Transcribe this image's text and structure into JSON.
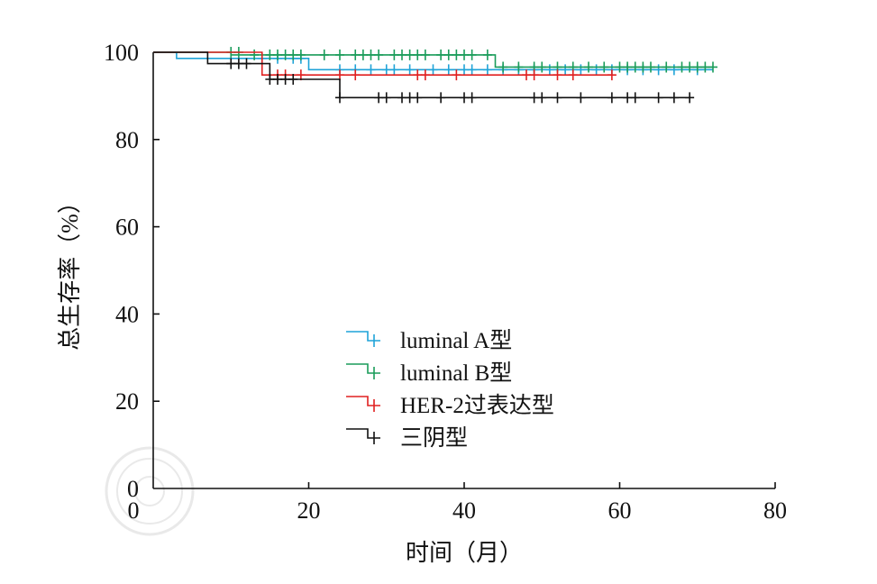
{
  "chart_data": {
    "type": "line",
    "subtype": "kaplan-meier",
    "xlabel": "时间（月）",
    "ylabel": "总生存率（%）",
    "xlim": [
      0,
      80
    ],
    "ylim": [
      0,
      100
    ],
    "xticks": [
      "0",
      "20",
      "40",
      "60",
      "80"
    ],
    "yticks": [
      "0",
      "20",
      "40",
      "60",
      "80",
      "100"
    ],
    "grid": false,
    "legend_position": "lower-center",
    "series": [
      {
        "name": "luminal A型",
        "color": "#1fa3d8",
        "steps": [
          [
            0,
            100
          ],
          [
            3,
            98.6
          ],
          [
            20,
            96.0
          ],
          [
            72,
            96.0
          ]
        ],
        "censors": [
          [
            14,
            98.6
          ],
          [
            16,
            98.6
          ],
          [
            18,
            98.6
          ],
          [
            19,
            98.6
          ],
          [
            24,
            96
          ],
          [
            26,
            96
          ],
          [
            28,
            96
          ],
          [
            30,
            96
          ],
          [
            31,
            96
          ],
          [
            33,
            96
          ],
          [
            36,
            96
          ],
          [
            38,
            96
          ],
          [
            40,
            96
          ],
          [
            41,
            96
          ],
          [
            43,
            96
          ],
          [
            45,
            96
          ],
          [
            47,
            96
          ],
          [
            49,
            96
          ],
          [
            51,
            96
          ],
          [
            53,
            96
          ],
          [
            55,
            96
          ],
          [
            57,
            96
          ],
          [
            59,
            96
          ],
          [
            61,
            96
          ],
          [
            63,
            96
          ],
          [
            65,
            96
          ],
          [
            67,
            96
          ],
          [
            70,
            96
          ]
        ]
      },
      {
        "name": "luminal B型",
        "color": "#1a9c5a",
        "steps": [
          [
            0,
            100
          ],
          [
            10,
            99.4
          ],
          [
            44,
            96.6
          ],
          [
            72,
            96.6
          ]
        ],
        "censors": [
          [
            10,
            100
          ],
          [
            11,
            100
          ],
          [
            13,
            99.4
          ],
          [
            15,
            99.4
          ],
          [
            16,
            99.4
          ],
          [
            17,
            99.4
          ],
          [
            18,
            99.4
          ],
          [
            19,
            99.4
          ],
          [
            22,
            99.4
          ],
          [
            24,
            99.4
          ],
          [
            26,
            99.4
          ],
          [
            27,
            99.4
          ],
          [
            28,
            99.4
          ],
          [
            29,
            99.4
          ],
          [
            31,
            99.4
          ],
          [
            32,
            99.4
          ],
          [
            33,
            99.4
          ],
          [
            34,
            99.4
          ],
          [
            35,
            99.4
          ],
          [
            37,
            99.4
          ],
          [
            38,
            99.4
          ],
          [
            39,
            99.4
          ],
          [
            40,
            99.4
          ],
          [
            41,
            99.4
          ],
          [
            43,
            99.4
          ],
          [
            45,
            96.6
          ],
          [
            47,
            96.6
          ],
          [
            49,
            96.6
          ],
          [
            50,
            96.6
          ],
          [
            52,
            96.6
          ],
          [
            54,
            96.6
          ],
          [
            56,
            96.6
          ],
          [
            58,
            96.6
          ],
          [
            60,
            96.6
          ],
          [
            61,
            96.6
          ],
          [
            62,
            96.6
          ],
          [
            63,
            96.6
          ],
          [
            64,
            96.6
          ],
          [
            66,
            96.6
          ],
          [
            68,
            96.6
          ],
          [
            69,
            96.6
          ],
          [
            70,
            96.6
          ],
          [
            71,
            96.6
          ],
          [
            72,
            96.6
          ]
        ]
      },
      {
        "name": "HER-2过表达型",
        "color": "#e02020",
        "steps": [
          [
            0,
            100
          ],
          [
            14,
            100
          ],
          [
            14,
            94.8
          ],
          [
            59,
            94.8
          ]
        ],
        "censors": [
          [
            16,
            94.8
          ],
          [
            17,
            94.8
          ],
          [
            19,
            94.8
          ],
          [
            24,
            94.8
          ],
          [
            26,
            94.8
          ],
          [
            34,
            94.8
          ],
          [
            35,
            94.8
          ],
          [
            39,
            94.8
          ],
          [
            48,
            94.8
          ],
          [
            49,
            94.8
          ],
          [
            52,
            94.8
          ],
          [
            54,
            94.8
          ],
          [
            59,
            94.8
          ]
        ]
      },
      {
        "name": "三阴型",
        "color": "#111111",
        "steps": [
          [
            0,
            100
          ],
          [
            7,
            97.4
          ],
          [
            15,
            97.4
          ],
          [
            15,
            93.8
          ],
          [
            24,
            93.8
          ],
          [
            24,
            89.6
          ],
          [
            69,
            89.6
          ]
        ],
        "censors": [
          [
            10,
            97.4
          ],
          [
            11,
            97.4
          ],
          [
            12,
            97.4
          ],
          [
            15,
            93.8
          ],
          [
            16,
            93.8
          ],
          [
            17,
            93.8
          ],
          [
            18,
            93.8
          ],
          [
            24,
            89.6
          ],
          [
            29,
            89.6
          ],
          [
            30,
            89.6
          ],
          [
            32,
            89.6
          ],
          [
            33,
            89.6
          ],
          [
            34,
            89.6
          ],
          [
            37,
            89.6
          ],
          [
            40,
            89.6
          ],
          [
            41,
            89.6
          ],
          [
            49,
            89.6
          ],
          [
            50,
            89.6
          ],
          [
            52,
            89.6
          ],
          [
            55,
            89.6
          ],
          [
            59,
            89.6
          ],
          [
            61,
            89.6
          ],
          [
            62,
            89.6
          ],
          [
            65,
            89.6
          ],
          [
            67,
            89.6
          ],
          [
            69,
            89.6
          ]
        ]
      }
    ]
  }
}
